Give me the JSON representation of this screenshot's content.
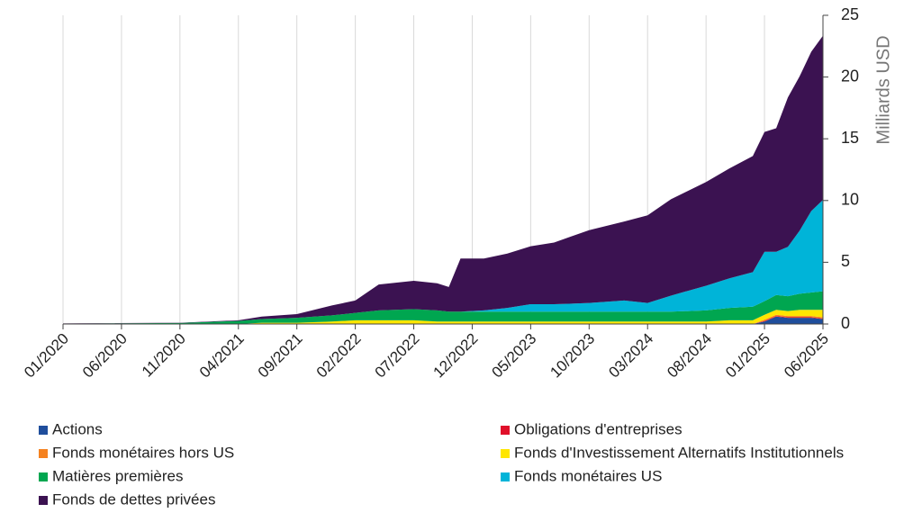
{
  "chart_data": {
    "type": "stacked_area",
    "y_label": "Milliards USD",
    "x": [
      "01/2020",
      "11/2020",
      "04/2021",
      "06/2021",
      "09/2021",
      "12/2021",
      "02/2022",
      "04/2022",
      "07/2022",
      "09/2022",
      "10/2022",
      "11/2022",
      "01/2023",
      "03/2023",
      "05/2023",
      "07/2023",
      "10/2023",
      "01/2024",
      "03/2024",
      "05/2024",
      "08/2024",
      "10/2024",
      "12/2024",
      "01/2025",
      "02/2025",
      "03/2025",
      "04/2025",
      "05/2025",
      "06/2025"
    ],
    "xlim": [
      "01/2020",
      "06/2025"
    ],
    "xticks": [
      "01/2020",
      "06/2020",
      "11/2020",
      "04/2021",
      "09/2021",
      "02/2022",
      "07/2022",
      "12/2022",
      "05/2023",
      "10/2023",
      "03/2024",
      "08/2024",
      "01/2025",
      "06/2025"
    ],
    "ylim": [
      0,
      25
    ],
    "yticks": [
      0,
      5,
      10,
      15,
      20,
      25
    ],
    "y_axis_side": "right",
    "x_grid": true,
    "series": [
      {
        "name": "Actions",
        "color": "#1f4e9c",
        "values": [
          0,
          0,
          0,
          0,
          0,
          0,
          0,
          0,
          0,
          0,
          0,
          0,
          0,
          0,
          0,
          0,
          0,
          0,
          0,
          0,
          0,
          0,
          0,
          0.2,
          0.6,
          0.5,
          0.5,
          0.5,
          0.4
        ]
      },
      {
        "name": "Obligations d'entreprises",
        "color": "#e0102a",
        "values": [
          0,
          0,
          0,
          0,
          0,
          0,
          0,
          0,
          0,
          0,
          0,
          0,
          0,
          0,
          0,
          0,
          0,
          0,
          0,
          0,
          0,
          0,
          0,
          0.05,
          0.05,
          0.05,
          0.05,
          0.05,
          0.05
        ]
      },
      {
        "name": "Fonds monétaires hors US",
        "color": "#f58220",
        "values": [
          0,
          0,
          0,
          0,
          0,
          0,
          0,
          0,
          0,
          0,
          0,
          0,
          0,
          0,
          0,
          0,
          0,
          0,
          0,
          0,
          0,
          0,
          0,
          0.1,
          0.1,
          0.1,
          0.1,
          0.1,
          0.1
        ]
      },
      {
        "name": "Fonds d'Investissement Alternatifs Institutionnels",
        "color": "#ffe600",
        "values": [
          0,
          0,
          0,
          0.1,
          0.1,
          0.2,
          0.3,
          0.3,
          0.3,
          0.2,
          0.2,
          0.2,
          0.2,
          0.2,
          0.2,
          0.2,
          0.2,
          0.2,
          0.2,
          0.2,
          0.2,
          0.3,
          0.3,
          0.4,
          0.4,
          0.4,
          0.5,
          0.5,
          0.6
        ]
      },
      {
        "name": "Matières premières",
        "color": "#00a650",
        "values": [
          0.03,
          0.08,
          0.25,
          0.3,
          0.4,
          0.5,
          0.6,
          0.8,
          0.9,
          0.9,
          0.8,
          0.8,
          0.8,
          0.8,
          0.8,
          0.8,
          0.8,
          0.8,
          0.8,
          0.8,
          0.9,
          1.0,
          1.1,
          1.1,
          1.2,
          1.2,
          1.3,
          1.4,
          1.5
        ]
      },
      {
        "name": "Fonds monétaires US",
        "color": "#00b4d8",
        "values": [
          0,
          0,
          0,
          0,
          0,
          0,
          0,
          0,
          0,
          0,
          0,
          0,
          0.1,
          0.3,
          0.6,
          0.6,
          0.7,
          0.9,
          0.7,
          1.3,
          2.0,
          2.4,
          2.8,
          4.0,
          3.5,
          4.0,
          5.1,
          6.6,
          7.4
        ]
      },
      {
        "name": "Fonds de dettes privées",
        "color": "#3b1251",
        "values": [
          0.02,
          0.02,
          0.05,
          0.2,
          0.3,
          0.8,
          1.0,
          2.1,
          2.3,
          2.2,
          2.0,
          4.3,
          4.2,
          4.4,
          4.7,
          5.0,
          5.9,
          6.4,
          7.1,
          7.8,
          8.4,
          8.9,
          9.4,
          9.7,
          10.0,
          12.1,
          12.5,
          12.9,
          13.3
        ]
      }
    ]
  }
}
